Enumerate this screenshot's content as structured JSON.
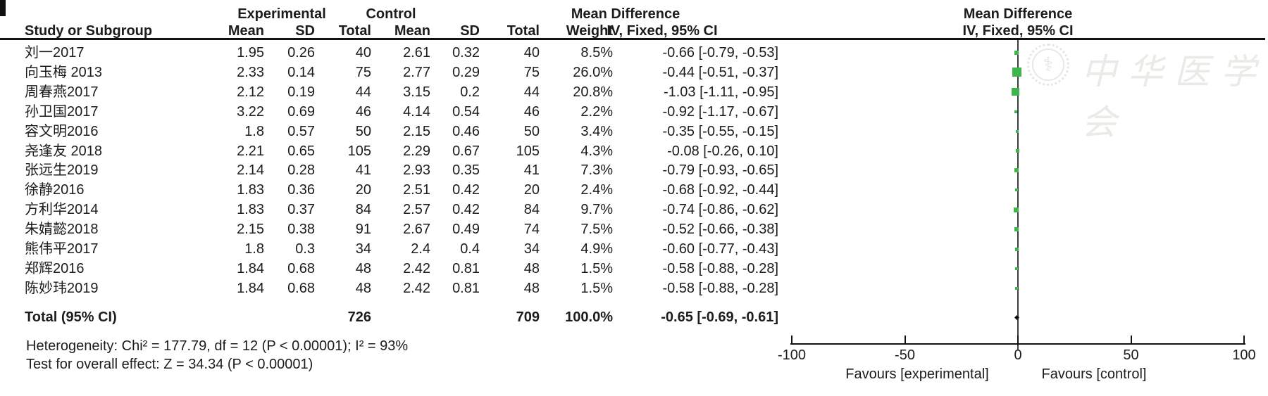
{
  "header": {
    "group_experimental": "Experimental",
    "group_control": "Control",
    "effect_title": "Mean Difference",
    "effect_subtitle": "IV, Fixed, 95% CI",
    "plot_title": "Mean Difference",
    "plot_subtitle": "IV, Fixed, 95% CI",
    "col_study": "Study or Subgroup",
    "col_mean": "Mean",
    "col_sd": "SD",
    "col_total": "Total",
    "col_weight": "Weight"
  },
  "chart_data": {
    "type": "forest",
    "effect_measure": "Mean Difference (IV, Fixed, 95% CI)",
    "marker_color": "#3CB54A",
    "studies": [
      {
        "name": "刘一2017",
        "exp_mean": "1.95",
        "exp_sd": "0.26",
        "exp_total": "40",
        "ctl_mean": "2.61",
        "ctl_sd": "0.32",
        "ctl_total": "40",
        "weight": "8.5%",
        "ci": "-0.66 [-0.79, -0.53]",
        "md": -0.66,
        "low": -0.79,
        "high": -0.53,
        "weight_pct": 8.5
      },
      {
        "name": "向玉梅 2013",
        "exp_mean": "2.33",
        "exp_sd": "0.14",
        "exp_total": "75",
        "ctl_mean": "2.77",
        "ctl_sd": "0.29",
        "ctl_total": "75",
        "weight": "26.0%",
        "ci": "-0.44 [-0.51, -0.37]",
        "md": -0.44,
        "low": -0.51,
        "high": -0.37,
        "weight_pct": 26.0
      },
      {
        "name": "周春燕2017",
        "exp_mean": "2.12",
        "exp_sd": "0.19",
        "exp_total": "44",
        "ctl_mean": "3.15",
        "ctl_sd": "0.2",
        "ctl_total": "44",
        "weight": "20.8%",
        "ci": "-1.03 [-1.11, -0.95]",
        "md": -1.03,
        "low": -1.11,
        "high": -0.95,
        "weight_pct": 20.8
      },
      {
        "name": "孙卫国2017",
        "exp_mean": "3.22",
        "exp_sd": "0.69",
        "exp_total": "46",
        "ctl_mean": "4.14",
        "ctl_sd": "0.54",
        "ctl_total": "46",
        "weight": "2.2%",
        "ci": "-0.92 [-1.17, -0.67]",
        "md": -0.92,
        "low": -1.17,
        "high": -0.67,
        "weight_pct": 2.2
      },
      {
        "name": "容文明2016",
        "exp_mean": "1.8",
        "exp_sd": "0.57",
        "exp_total": "50",
        "ctl_mean": "2.15",
        "ctl_sd": "0.46",
        "ctl_total": "50",
        "weight": "3.4%",
        "ci": "-0.35 [-0.55, -0.15]",
        "md": -0.35,
        "low": -0.55,
        "high": -0.15,
        "weight_pct": 3.4
      },
      {
        "name": "尧逢友 2018",
        "exp_mean": "2.21",
        "exp_sd": "0.65",
        "exp_total": "105",
        "ctl_mean": "2.29",
        "ctl_sd": "0.67",
        "ctl_total": "105",
        "weight": "4.3%",
        "ci": "-0.08 [-0.26, 0.10]",
        "md": -0.08,
        "low": -0.26,
        "high": 0.1,
        "weight_pct": 4.3
      },
      {
        "name": "张远生2019",
        "exp_mean": "2.14",
        "exp_sd": "0.28",
        "exp_total": "41",
        "ctl_mean": "2.93",
        "ctl_sd": "0.35",
        "ctl_total": "41",
        "weight": "7.3%",
        "ci": "-0.79 [-0.93, -0.65]",
        "md": -0.79,
        "low": -0.93,
        "high": -0.65,
        "weight_pct": 7.3
      },
      {
        "name": "徐静2016",
        "exp_mean": "1.83",
        "exp_sd": "0.36",
        "exp_total": "20",
        "ctl_mean": "2.51",
        "ctl_sd": "0.42",
        "ctl_total": "20",
        "weight": "2.4%",
        "ci": "-0.68 [-0.92, -0.44]",
        "md": -0.68,
        "low": -0.92,
        "high": -0.44,
        "weight_pct": 2.4
      },
      {
        "name": "方利华2014",
        "exp_mean": "1.83",
        "exp_sd": "0.37",
        "exp_total": "84",
        "ctl_mean": "2.57",
        "ctl_sd": "0.42",
        "ctl_total": "84",
        "weight": "9.7%",
        "ci": "-0.74 [-0.86, -0.62]",
        "md": -0.74,
        "low": -0.86,
        "high": -0.62,
        "weight_pct": 9.7
      },
      {
        "name": "朱婧懿2018",
        "exp_mean": "2.15",
        "exp_sd": "0.38",
        "exp_total": "91",
        "ctl_mean": "2.67",
        "ctl_sd": "0.49",
        "ctl_total": "74",
        "weight": "7.5%",
        "ci": "-0.52 [-0.66, -0.38]",
        "md": -0.52,
        "low": -0.66,
        "high": -0.38,
        "weight_pct": 7.5
      },
      {
        "name": "熊伟平2017",
        "exp_mean": "1.8",
        "exp_sd": "0.3",
        "exp_total": "34",
        "ctl_mean": "2.4",
        "ctl_sd": "0.4",
        "ctl_total": "34",
        "weight": "4.9%",
        "ci": "-0.60 [-0.77, -0.43]",
        "md": -0.6,
        "low": -0.77,
        "high": -0.43,
        "weight_pct": 4.9
      },
      {
        "name": "郑辉2016",
        "exp_mean": "1.84",
        "exp_sd": "0.68",
        "exp_total": "48",
        "ctl_mean": "2.42",
        "ctl_sd": "0.81",
        "ctl_total": "48",
        "weight": "1.5%",
        "ci": "-0.58 [-0.88, -0.28]",
        "md": -0.58,
        "low": -0.88,
        "high": -0.28,
        "weight_pct": 1.5
      },
      {
        "name": "陈妙玮2019",
        "exp_mean": "1.84",
        "exp_sd": "0.68",
        "exp_total": "48",
        "ctl_mean": "2.42",
        "ctl_sd": "0.81",
        "ctl_total": "48",
        "weight": "1.5%",
        "ci": "-0.58 [-0.88, -0.28]",
        "md": -0.58,
        "low": -0.88,
        "high": -0.28,
        "weight_pct": 1.5
      }
    ],
    "total": {
      "label": "Total (95% CI)",
      "exp_total": "726",
      "ctl_total": "709",
      "weight": "100.0%",
      "ci": "-0.65 [-0.69, -0.61]",
      "md": -0.65
    },
    "axis": {
      "xlim": [
        -100,
        100
      ],
      "ticks": [
        "-100",
        "-50",
        "0",
        "50",
        "100"
      ],
      "left_label": "Favours [experimental]",
      "right_label": "Favours [control]"
    }
  },
  "footer": {
    "heterogeneity": "Heterogeneity: Chi² = 177.79, df = 12 (P < 0.00001); I² = 93%",
    "overall_effect": "Test for overall effect: Z = 34.34 (P < 0.00001)"
  },
  "watermark": {
    "text": "中华医学会",
    "emblem_glyph": "⚕"
  }
}
